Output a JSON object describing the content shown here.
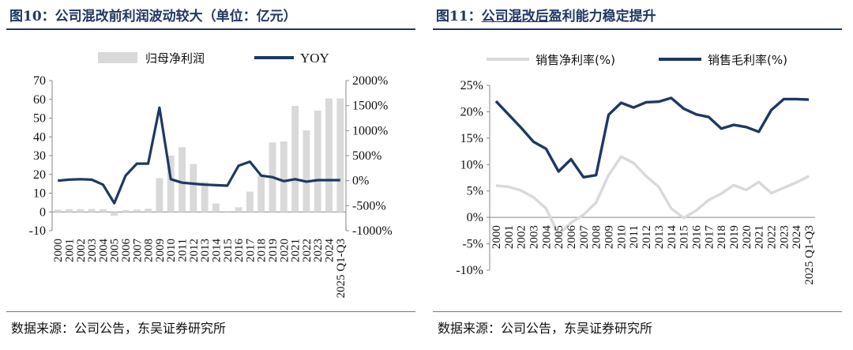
{
  "source_text": "数据来源：公司公告，东吴证券研究所",
  "colors": {
    "navy": "#1f3864",
    "bar_gray": "#d9d9d9",
    "light_line": "#d9d9d9"
  },
  "figures": [
    {
      "title_prefix": "图10：",
      "title_main": "公司混改前利润波动较大（单位：亿元）",
      "source": "数据来源：公司公告，东吴证券研究所"
    },
    {
      "title_prefix": "图11：",
      "title_underlined": "公司混改后",
      "title_rest": "盈利能力稳定提升",
      "source": "数据来源：公司公告，东吴证券研究所"
    }
  ],
  "chart_data": [
    {
      "type": "bar+line",
      "title": "公司混改前利润波动较大（单位：亿元）",
      "categories": [
        "2000",
        "2001",
        "2002",
        "2003",
        "2004",
        "2005",
        "2006",
        "2007",
        "2008",
        "2009",
        "2010",
        "2011",
        "2012",
        "2013",
        "2014",
        "2015",
        "2016",
        "2017",
        "2018",
        "2019",
        "2020",
        "2021",
        "2022",
        "2023",
        "2024",
        "2025 Q1-Q3"
      ],
      "series": [
        {
          "name": "归母净利润",
          "kind": "bar",
          "axis": "left",
          "values": [
            1.2,
            1.5,
            1.5,
            1.6,
            1.5,
            -2.1,
            1.0,
            1.3,
            1.8,
            18,
            30,
            34.5,
            25.5,
            16,
            4.5,
            0.5,
            2.5,
            10.8,
            19.5,
            37,
            37.5,
            56.5,
            43.5,
            54,
            60.5,
            60.5
          ]
        },
        {
          "name": "YOY",
          "kind": "line",
          "axis": "right",
          "unit": "%",
          "values": [
            0,
            20,
            30,
            20,
            -80,
            -450,
            100,
            340,
            340,
            1460,
            30,
            -40,
            -60,
            -80,
            -90,
            -100,
            300,
            380,
            100,
            70,
            -10,
            30,
            -20,
            10,
            10,
            10
          ]
        }
      ],
      "yleft": {
        "range": [
          -10,
          70
        ],
        "ticks": [
          "-10",
          "0",
          "10",
          "20",
          "30",
          "40",
          "50",
          "60",
          "70"
        ]
      },
      "yright": {
        "range": [
          -1000,
          2000
        ],
        "ticks": [
          "-1000%",
          "-500%",
          "0%",
          "500%",
          "1000%",
          "1500%",
          "2000%"
        ]
      },
      "legend": {
        "position": "top",
        "labels": [
          "归母净利润",
          "YOY"
        ]
      },
      "grid": false
    },
    {
      "type": "line",
      "title": "公司混改后盈利能力稳定提升",
      "categories": [
        "2000",
        "2001",
        "2002",
        "2003",
        "2004",
        "2005",
        "2006",
        "2007",
        "2008",
        "2009",
        "2010",
        "2011",
        "2012",
        "2013",
        "2014",
        "2015",
        "2016",
        "2017",
        "2018",
        "2019",
        "2020",
        "2021",
        "2022",
        "2023",
        "2024",
        "2025 Q1-Q3"
      ],
      "series": [
        {
          "name": "销售净利率(%)",
          "color": "#d9d9d9",
          "values": [
            6.0,
            5.8,
            5.1,
            3.8,
            1.7,
            -3.2,
            -1.0,
            0.5,
            2.8,
            8.0,
            11.5,
            10.3,
            7.8,
            5.8,
            1.7,
            -0.1,
            1.3,
            3.3,
            4.5,
            6.1,
            5.2,
            6.7,
            4.6,
            5.6,
            6.6,
            7.8
          ]
        },
        {
          "name": "销售毛利率(%)",
          "color": "#1f3864",
          "values": [
            22.0,
            19.5,
            17.0,
            14.3,
            13.0,
            8.7,
            11.0,
            7.6,
            8.0,
            19.4,
            21.7,
            20.8,
            21.8,
            21.9,
            22.6,
            20.6,
            19.5,
            19.0,
            16.8,
            17.5,
            17.1,
            16.2,
            20.3,
            22.4,
            22.4,
            22.3
          ]
        }
      ],
      "y": {
        "range": [
          -10,
          25
        ],
        "ticks": [
          "-10%",
          "-5%",
          "0%",
          "5%",
          "10%",
          "15%",
          "20%",
          "25%"
        ]
      },
      "legend": {
        "position": "top",
        "labels": [
          "销售净利率(%)",
          "销售毛利率(%)"
        ]
      },
      "grid": false
    }
  ]
}
